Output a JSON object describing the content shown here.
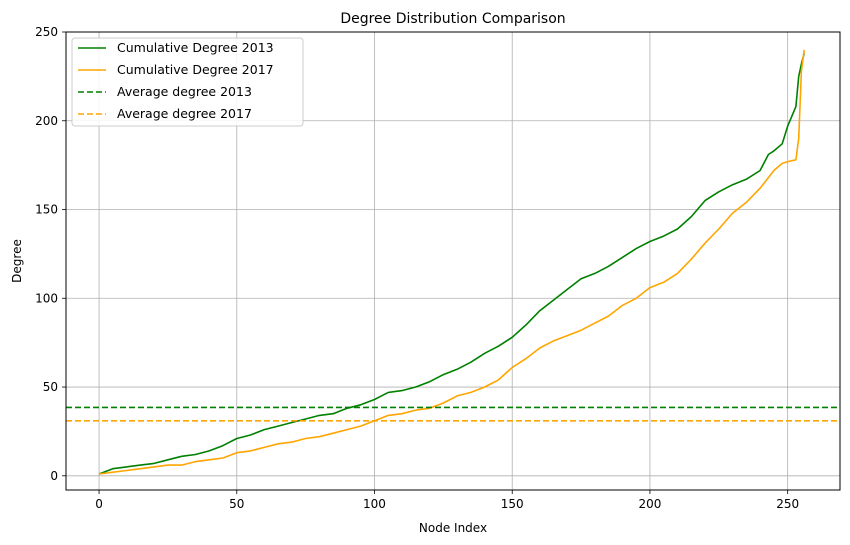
{
  "chart_data": {
    "type": "line",
    "title": "Degree Distribution Comparison",
    "xlabel": "Node Index",
    "ylabel": "Degree",
    "xlim": [
      -12,
      269
    ],
    "ylim": [
      -8,
      250
    ],
    "xticks": [
      0,
      50,
      100,
      150,
      200,
      250
    ],
    "yticks": [
      0,
      50,
      100,
      150,
      200,
      250
    ],
    "grid": true,
    "legend_position": "top-left",
    "series": [
      {
        "name": "Cumulative Degree 2013",
        "color": "#008000",
        "style": "solid",
        "points": [
          [
            0,
            1
          ],
          [
            5,
            4
          ],
          [
            10,
            5
          ],
          [
            15,
            6
          ],
          [
            20,
            7
          ],
          [
            25,
            9
          ],
          [
            30,
            11
          ],
          [
            35,
            12
          ],
          [
            40,
            14
          ],
          [
            45,
            17
          ],
          [
            50,
            21
          ],
          [
            55,
            23
          ],
          [
            60,
            26
          ],
          [
            65,
            28
          ],
          [
            70,
            30
          ],
          [
            75,
            32
          ],
          [
            80,
            34
          ],
          [
            85,
            35
          ],
          [
            90,
            38
          ],
          [
            95,
            40
          ],
          [
            100,
            43
          ],
          [
            105,
            47
          ],
          [
            110,
            48
          ],
          [
            115,
            50
          ],
          [
            120,
            53
          ],
          [
            125,
            57
          ],
          [
            130,
            60
          ],
          [
            135,
            64
          ],
          [
            140,
            69
          ],
          [
            145,
            73
          ],
          [
            150,
            78
          ],
          [
            155,
            85
          ],
          [
            160,
            93
          ],
          [
            165,
            99
          ],
          [
            170,
            105
          ],
          [
            175,
            111
          ],
          [
            180,
            114
          ],
          [
            185,
            118
          ],
          [
            190,
            123
          ],
          [
            195,
            128
          ],
          [
            200,
            132
          ],
          [
            205,
            135
          ],
          [
            210,
            139
          ],
          [
            215,
            146
          ],
          [
            220,
            155
          ],
          [
            225,
            160
          ],
          [
            230,
            164
          ],
          [
            235,
            167
          ],
          [
            240,
            172
          ],
          [
            243,
            181
          ],
          [
            245,
            183
          ],
          [
            248,
            187
          ],
          [
            250,
            197
          ],
          [
            253,
            208
          ],
          [
            254,
            225
          ],
          [
            255,
            232
          ],
          [
            256,
            238
          ]
        ]
      },
      {
        "name": "Cumulative Degree 2017",
        "color": "#ffa500",
        "style": "solid",
        "points": [
          [
            0,
            1
          ],
          [
            5,
            2
          ],
          [
            10,
            3
          ],
          [
            15,
            4
          ],
          [
            20,
            5
          ],
          [
            25,
            6
          ],
          [
            30,
            6
          ],
          [
            35,
            8
          ],
          [
            40,
            9
          ],
          [
            45,
            10
          ],
          [
            50,
            13
          ],
          [
            55,
            14
          ],
          [
            60,
            16
          ],
          [
            65,
            18
          ],
          [
            70,
            19
          ],
          [
            75,
            21
          ],
          [
            80,
            22
          ],
          [
            85,
            24
          ],
          [
            90,
            26
          ],
          [
            95,
            28
          ],
          [
            100,
            31
          ],
          [
            105,
            34
          ],
          [
            110,
            35
          ],
          [
            115,
            37
          ],
          [
            120,
            38
          ],
          [
            125,
            41
          ],
          [
            130,
            45
          ],
          [
            135,
            47
          ],
          [
            140,
            50
          ],
          [
            145,
            54
          ],
          [
            150,
            61
          ],
          [
            155,
            66
          ],
          [
            160,
            72
          ],
          [
            165,
            76
          ],
          [
            170,
            79
          ],
          [
            175,
            82
          ],
          [
            180,
            86
          ],
          [
            185,
            90
          ],
          [
            190,
            96
          ],
          [
            195,
            100
          ],
          [
            200,
            106
          ],
          [
            205,
            109
          ],
          [
            210,
            114
          ],
          [
            215,
            122
          ],
          [
            220,
            131
          ],
          [
            225,
            139
          ],
          [
            230,
            148
          ],
          [
            235,
            154
          ],
          [
            240,
            162
          ],
          [
            243,
            168
          ],
          [
            245,
            172
          ],
          [
            248,
            176
          ],
          [
            250,
            177
          ],
          [
            253,
            178
          ],
          [
            254,
            190
          ],
          [
            255,
            228
          ],
          [
            256,
            240
          ]
        ]
      },
      {
        "name": "Average degree 2013",
        "color": "#008000",
        "style": "dashed",
        "y": 38.5
      },
      {
        "name": "Average degree 2017",
        "color": "#ffa500",
        "style": "dashed",
        "y": 31
      }
    ]
  }
}
